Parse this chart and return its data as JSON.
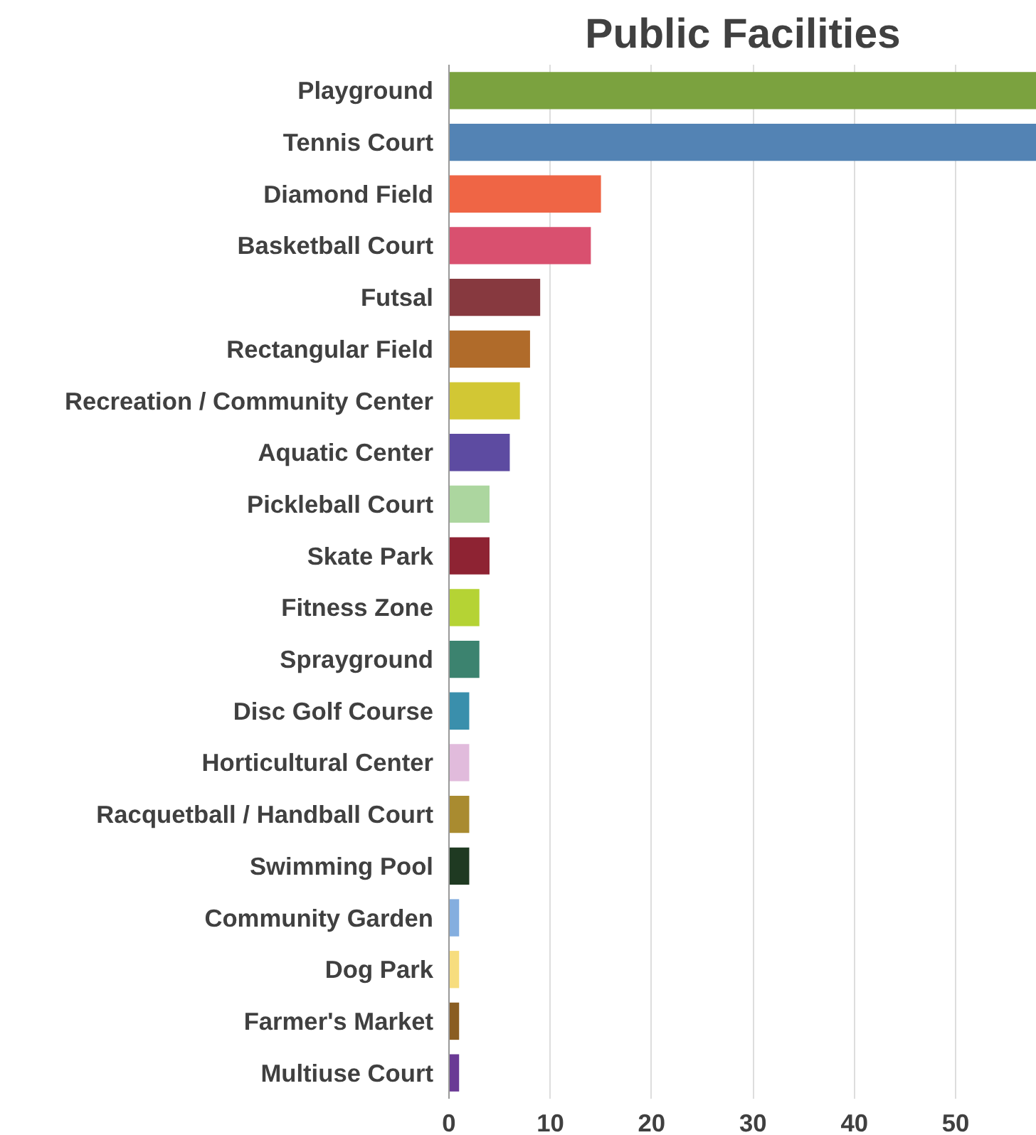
{
  "chart_data": {
    "type": "bar",
    "orientation": "horizontal",
    "title": "Public Facilities",
    "categories": [
      "Playground",
      "Tennis Court",
      "Diamond Field",
      "Basketball Court",
      "Futsal",
      "Rectangular Field",
      "Recreation / Community Center",
      "Aquatic Center",
      "Pickleball Court",
      "Skate Park",
      "Fitness Zone",
      "Sprayground",
      "Disc Golf Course",
      "Horticultural Center",
      "Racquetball / Handball Court",
      "Swimming Pool",
      "Community Garden",
      "Dog Park",
      "Farmer's Market",
      "Multiuse Court"
    ],
    "values": [
      58,
      58,
      15,
      14,
      9,
      8,
      7,
      6,
      4,
      4,
      3,
      3,
      2,
      2,
      2,
      2,
      1,
      1,
      1,
      1
    ],
    "colors": [
      "#7ba23f",
      "#5383b4",
      "#ef6545",
      "#d9506f",
      "#87393f",
      "#b06b2a",
      "#d2c734",
      "#5d4ba1",
      "#acd69f",
      "#8e2333",
      "#b5d334",
      "#3c836f",
      "#3a8fac",
      "#e1bbdc",
      "#a98b30",
      "#1f3a22",
      "#84aedf",
      "#f7dd7e",
      "#8a5d22",
      "#6a3a95"
    ],
    "xlim": [
      0,
      58
    ],
    "xticks": [
      0,
      10,
      20,
      30,
      40,
      50
    ],
    "grid": "x"
  }
}
